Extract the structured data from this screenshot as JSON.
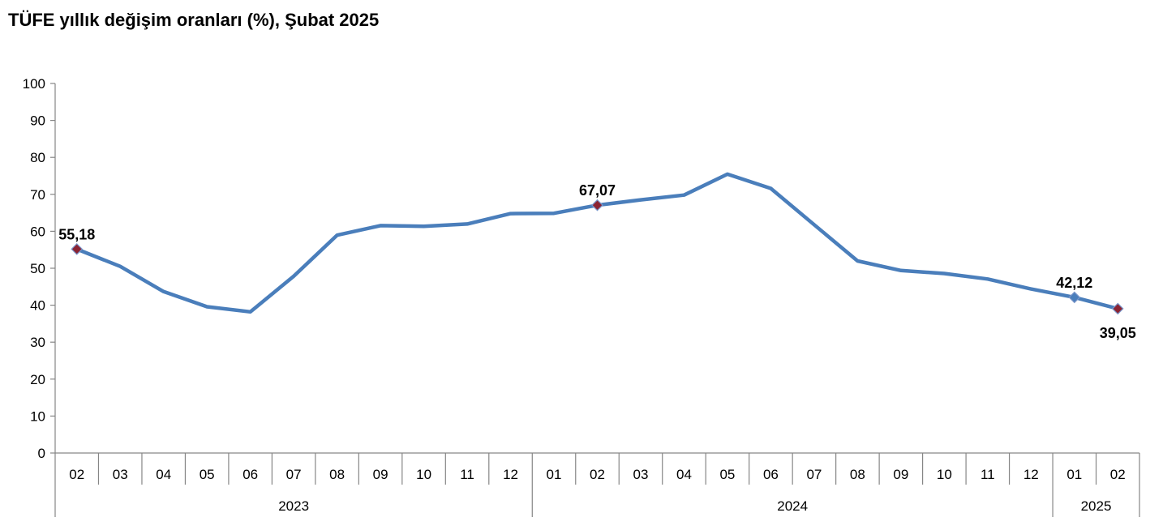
{
  "title": "TÜFE yıllık değişim oranları (%), Şubat 2025",
  "chart_data": {
    "type": "line",
    "title": "TÜFE yıllık değişim oranları (%), Şubat 2025",
    "xlabel": "",
    "ylabel": "",
    "ylim": [
      0,
      100
    ],
    "yticks": [
      "0",
      "10",
      "20",
      "30",
      "40",
      "50",
      "60",
      "70",
      "80",
      "90",
      "100"
    ],
    "categories": [
      "02",
      "03",
      "04",
      "05",
      "06",
      "07",
      "08",
      "09",
      "10",
      "11",
      "12",
      "01",
      "02",
      "03",
      "04",
      "05",
      "06",
      "07",
      "08",
      "09",
      "10",
      "11",
      "12",
      "01",
      "02"
    ],
    "years": [
      {
        "label": "2023",
        "count": 11
      },
      {
        "label": "2024",
        "count": 12
      },
      {
        "label": "2025",
        "count": 2
      }
    ],
    "series": [
      {
        "name": "TÜFE",
        "color": "#4a7ebb",
        "values": [
          55.18,
          50.51,
          43.68,
          39.59,
          38.21,
          47.83,
          58.94,
          61.53,
          61.36,
          61.98,
          64.77,
          64.86,
          67.07,
          68.5,
          69.8,
          75.45,
          71.6,
          61.78,
          51.97,
          49.38,
          48.58,
          47.09,
          44.38,
          42.12,
          39.05
        ]
      }
    ],
    "annotations": [
      {
        "index": 0,
        "label": "55,18",
        "marker": "#8b2332"
      },
      {
        "index": 12,
        "label": "67,07",
        "marker": "#8b2332"
      },
      {
        "index": 23,
        "label": "42,12",
        "marker": "#4a7ebb"
      },
      {
        "index": 24,
        "label": "39,05",
        "marker": "#8b2332"
      }
    ]
  }
}
